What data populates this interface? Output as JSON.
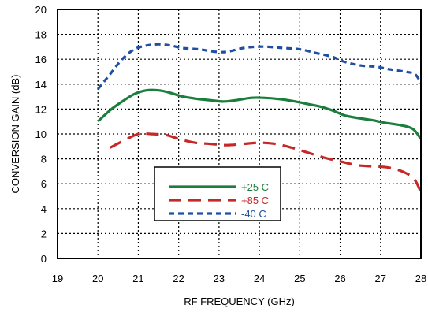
{
  "chart_data": {
    "type": "line",
    "title": "",
    "xlabel": "RF FREQUENCY (GHz)",
    "ylabel": "CONVERSION GAIN (dB)",
    "xlim": [
      19,
      28
    ],
    "ylim": [
      0,
      20
    ],
    "xticks": [
      19,
      20,
      21,
      22,
      23,
      24,
      25,
      26,
      27,
      28
    ],
    "yticks": [
      0,
      2,
      4,
      6,
      8,
      10,
      12,
      14,
      16,
      18,
      20
    ],
    "grid": true,
    "legend_placement": "bottom-center",
    "series": [
      {
        "name": "+25 C",
        "color": "#1a7f3c",
        "dash": "solid",
        "x": [
          20.0,
          20.3,
          20.6,
          20.9,
          21.2,
          21.5,
          21.8,
          22.1,
          22.5,
          22.8,
          23.1,
          23.4,
          23.8,
          24.1,
          24.5,
          24.9,
          25.2,
          25.5,
          25.8,
          26.1,
          26.4,
          26.8,
          27.1,
          27.5,
          27.8,
          28.0
        ],
        "y": [
          11.0,
          11.9,
          12.6,
          13.2,
          13.5,
          13.5,
          13.3,
          13.0,
          12.8,
          12.7,
          12.6,
          12.7,
          12.9,
          12.9,
          12.8,
          12.6,
          12.4,
          12.2,
          11.9,
          11.5,
          11.3,
          11.1,
          10.9,
          10.7,
          10.4,
          9.6
        ]
      },
      {
        "name": "+85 C",
        "color": "#c62828",
        "dash": "long-dash",
        "x": [
          20.3,
          20.6,
          21.0,
          21.3,
          21.7,
          22.0,
          22.4,
          22.8,
          23.2,
          23.6,
          24.0,
          24.4,
          24.8,
          25.2,
          25.6,
          26.0,
          26.4,
          26.8,
          27.2,
          27.6,
          27.85,
          28.0
        ],
        "y": [
          8.9,
          9.4,
          10.0,
          10.0,
          9.9,
          9.6,
          9.3,
          9.2,
          9.1,
          9.2,
          9.3,
          9.2,
          8.9,
          8.5,
          8.1,
          7.8,
          7.5,
          7.4,
          7.3,
          6.9,
          6.3,
          5.3
        ]
      },
      {
        "name": "-40 C",
        "color": "#1f4fa3",
        "dash": "short-dash",
        "x": [
          20.0,
          20.3,
          20.6,
          20.9,
          21.2,
          21.5,
          21.8,
          22.1,
          22.5,
          22.9,
          23.2,
          23.6,
          23.9,
          24.2,
          24.6,
          25.0,
          25.4,
          25.8,
          26.1,
          26.5,
          26.9,
          27.2,
          27.6,
          27.85,
          28.0
        ],
        "y": [
          13.6,
          14.8,
          16.0,
          16.8,
          17.1,
          17.2,
          17.1,
          16.9,
          16.8,
          16.6,
          16.6,
          16.9,
          17.0,
          17.0,
          16.9,
          16.8,
          16.5,
          16.2,
          15.8,
          15.5,
          15.4,
          15.2,
          15.0,
          14.8,
          14.1
        ]
      }
    ]
  }
}
